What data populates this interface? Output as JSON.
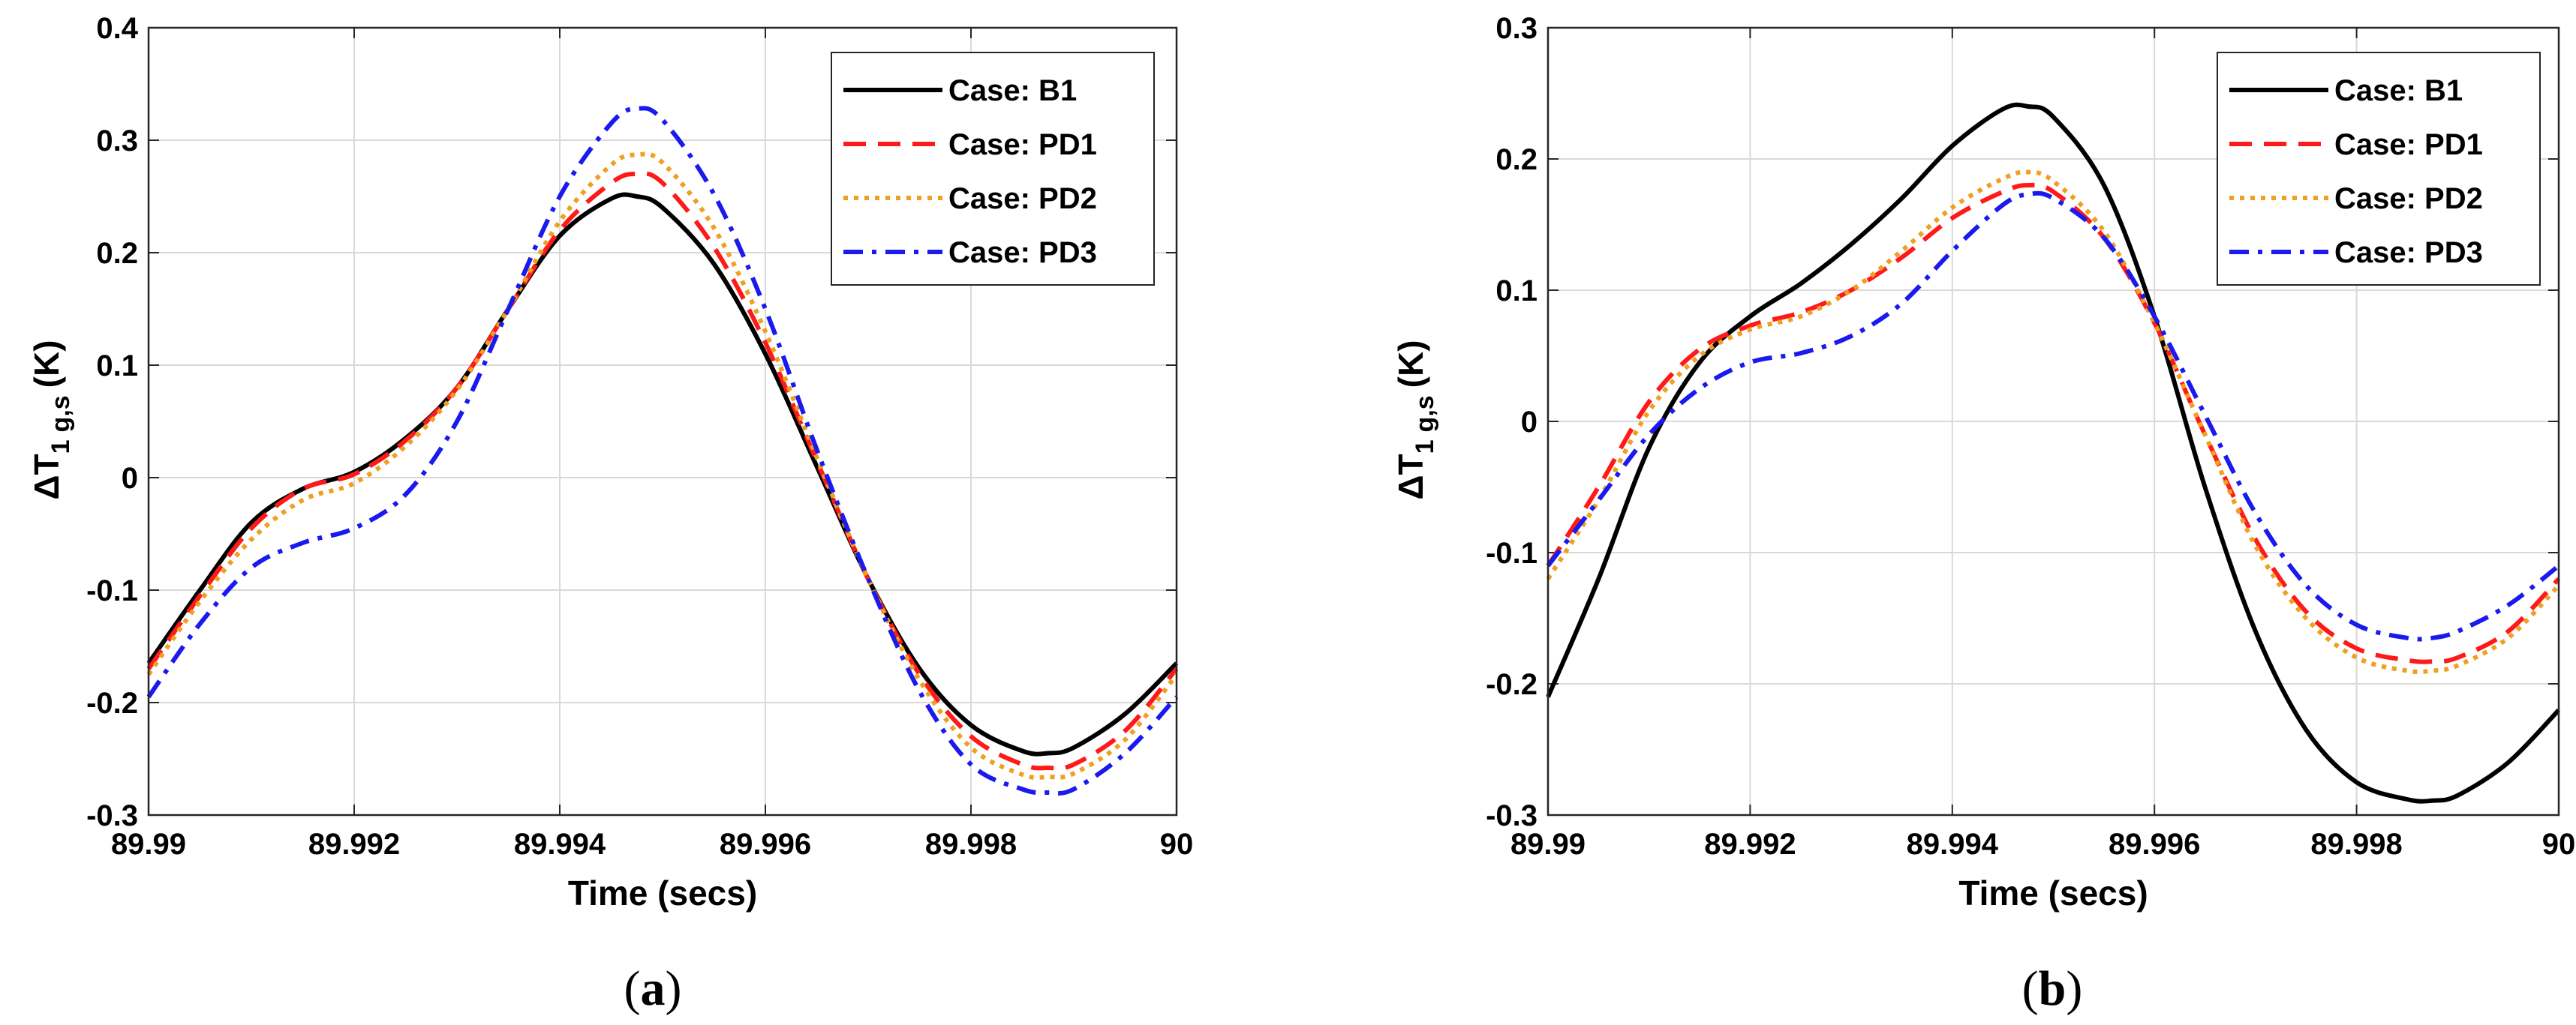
{
  "chart_data": [
    {
      "type": "line",
      "caption": "(a)",
      "caption_letter": "a",
      "xlabel": "Time (secs)",
      "ylabel_main": "ΔT",
      "ylabel_sub_1": "1",
      "ylabel_sub_2": "g,s",
      "ylabel_unit": "(K)",
      "xlim": [
        89.99,
        90
      ],
      "ylim": [
        -0.3,
        0.4
      ],
      "xticks": [
        89.99,
        89.992,
        89.994,
        89.996,
        89.998,
        90
      ],
      "xtick_labels": [
        "89.99",
        "89.992",
        "89.994",
        "89.996",
        "89.998",
        "90"
      ],
      "yticks": [
        -0.3,
        -0.2,
        -0.1,
        0,
        0.1,
        0.2,
        0.3,
        0.4
      ],
      "ytick_labels": [
        "-0.3",
        "-0.2",
        "-0.1",
        "0",
        "0.1",
        "0.2",
        "0.3",
        "0.4"
      ],
      "grid": true,
      "legend_position": "top-right",
      "x": [
        89.99,
        89.9905,
        89.991,
        89.9915,
        89.992,
        89.9925,
        89.993,
        89.9935,
        89.994,
        89.9945,
        89.99475,
        89.995,
        89.9955,
        89.996,
        89.9965,
        89.997,
        89.9975,
        89.998,
        89.9985,
        89.99875,
        89.999,
        89.9995,
        90
      ],
      "series": [
        {
          "name": "Case: B1",
          "color": "#000000",
          "dash": "solid",
          "values": [
            -0.165,
            -0.1,
            -0.04,
            -0.01,
            0.005,
            0.035,
            0.08,
            0.15,
            0.215,
            0.248,
            0.25,
            0.24,
            0.19,
            0.11,
            0.01,
            -0.09,
            -0.17,
            -0.22,
            -0.243,
            -0.245,
            -0.24,
            -0.21,
            -0.165
          ]
        },
        {
          "name": "Case: PD1",
          "color": "#ff1a1a",
          "dash": "dashed",
          "values": [
            -0.17,
            -0.105,
            -0.045,
            -0.01,
            0.003,
            0.033,
            0.08,
            0.15,
            0.22,
            0.262,
            0.27,
            0.262,
            0.205,
            0.12,
            0.015,
            -0.09,
            -0.175,
            -0.23,
            -0.255,
            -0.258,
            -0.255,
            -0.225,
            -0.17
          ]
        },
        {
          "name": "Case: PD2",
          "color": "#f0a020",
          "dash": "dotted",
          "values": [
            -0.175,
            -0.11,
            -0.055,
            -0.02,
            -0.005,
            0.028,
            0.078,
            0.15,
            0.228,
            0.278,
            0.287,
            0.28,
            0.222,
            0.13,
            0.018,
            -0.09,
            -0.18,
            -0.24,
            -0.264,
            -0.266,
            -0.263,
            -0.233,
            -0.175
          ]
        },
        {
          "name": "Case: PD3",
          "color": "#1a1aee",
          "dash": "dashdot",
          "values": [
            -0.195,
            -0.13,
            -0.08,
            -0.058,
            -0.045,
            -0.015,
            0.05,
            0.15,
            0.25,
            0.315,
            0.328,
            0.318,
            0.252,
            0.15,
            0.025,
            -0.09,
            -0.19,
            -0.255,
            -0.277,
            -0.28,
            -0.277,
            -0.245,
            -0.195
          ]
        }
      ]
    },
    {
      "type": "line",
      "caption": "(b)",
      "caption_letter": "b",
      "xlabel": "Time (secs)",
      "ylabel_main": "ΔT",
      "ylabel_sub_1": "1",
      "ylabel_sub_2": "g,s",
      "ylabel_unit": "(K)",
      "xlim": [
        89.99,
        90
      ],
      "ylim": [
        -0.3,
        0.3
      ],
      "xticks": [
        89.99,
        89.992,
        89.994,
        89.996,
        89.998,
        90
      ],
      "xtick_labels": [
        "89.99",
        "89.992",
        "89.994",
        "89.996",
        "89.998",
        "90"
      ],
      "yticks": [
        -0.3,
        -0.2,
        -0.1,
        0,
        0.1,
        0.2,
        0.3
      ],
      "ytick_labels": [
        "-0.3",
        "-0.2",
        "-0.1",
        "0",
        "0.1",
        "0.2",
        "0.3"
      ],
      "grid": true,
      "legend_position": "top-right",
      "x": [
        89.99,
        89.9905,
        89.991,
        89.9915,
        89.992,
        89.9925,
        89.993,
        89.9935,
        89.994,
        89.9945,
        89.99475,
        89.995,
        89.9955,
        89.996,
        89.9965,
        89.997,
        89.9975,
        89.998,
        89.9985,
        89.99875,
        89.999,
        89.9995,
        90
      ],
      "series": [
        {
          "name": "Case: B1",
          "color": "#000000",
          "dash": "solid",
          "values": [
            -0.21,
            -0.12,
            -0.02,
            0.045,
            0.08,
            0.105,
            0.135,
            0.17,
            0.21,
            0.238,
            0.24,
            0.232,
            0.18,
            0.08,
            -0.05,
            -0.16,
            -0.235,
            -0.275,
            -0.288,
            -0.289,
            -0.285,
            -0.26,
            -0.22
          ]
        },
        {
          "name": "Case: PD1",
          "color": "#ff1a1a",
          "dash": "dashed",
          "values": [
            -0.11,
            -0.05,
            0.015,
            0.055,
            0.073,
            0.083,
            0.1,
            0.125,
            0.155,
            0.175,
            0.18,
            0.175,
            0.14,
            0.075,
            -0.01,
            -0.09,
            -0.145,
            -0.173,
            -0.182,
            -0.183,
            -0.18,
            -0.16,
            -0.12
          ]
        },
        {
          "name": "Case: PD2",
          "color": "#f0a020",
          "dash": "dotted",
          "values": [
            -0.12,
            -0.06,
            0.008,
            0.05,
            0.07,
            0.08,
            0.1,
            0.13,
            0.163,
            0.185,
            0.19,
            0.183,
            0.145,
            0.075,
            -0.01,
            -0.095,
            -0.15,
            -0.18,
            -0.19,
            -0.19,
            -0.186,
            -0.165,
            -0.125
          ]
        },
        {
          "name": "Case: PD3",
          "color": "#1a1aee",
          "dash": "dashdot",
          "values": [
            -0.11,
            -0.06,
            -0.01,
            0.025,
            0.045,
            0.052,
            0.065,
            0.09,
            0.13,
            0.165,
            0.173,
            0.17,
            0.14,
            0.08,
            0.005,
            -0.07,
            -0.125,
            -0.155,
            -0.165,
            -0.165,
            -0.16,
            -0.14,
            -0.11
          ]
        }
      ]
    }
  ]
}
